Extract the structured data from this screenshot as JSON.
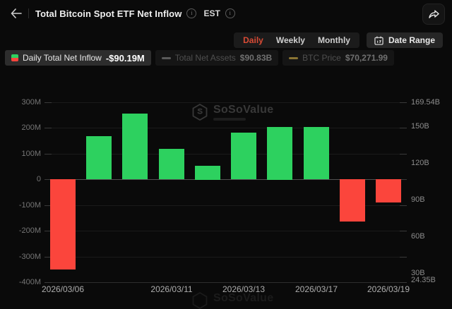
{
  "header": {
    "title": "Total Bitcoin Spot ETF Net Inflow",
    "title_info": "i",
    "timezone": "EST",
    "timezone_info": "i"
  },
  "controls": {
    "tabs": [
      {
        "label": "Daily",
        "active": true
      },
      {
        "label": "Weekly",
        "active": false
      },
      {
        "label": "Monthly",
        "active": false
      }
    ],
    "active_tab_color": "#d94b35",
    "date_range_label": "Date Range"
  },
  "legend": [
    {
      "label": "Daily Total Net Inflow",
      "value": "-$90.19M",
      "active": true,
      "swatch_top": "#2dd15f",
      "swatch_bottom": "#fb453c"
    },
    {
      "label": "Total Net Assets",
      "value": "$90.83B",
      "active": false,
      "swatch_color": "#5a5a5a"
    },
    {
      "label": "BTC Price",
      "value": "$70,271.99",
      "active": false,
      "swatch_color": "#8a7433"
    }
  ],
  "watermark": {
    "text": "SoSoValue"
  },
  "chart_data": {
    "type": "bar",
    "title": "Total Bitcoin Spot ETF Net Inflow",
    "series_name": "Daily Total Net Inflow",
    "values_millions": [
      -352,
      168,
      255,
      118,
      54,
      182,
      205,
      203,
      -165,
      -90.19
    ],
    "x_visible_ticks": [
      {
        "label": "2026/03/06",
        "bar_index": 0
      },
      {
        "label": "2026/03/11",
        "bar_index": 3
      },
      {
        "label": "2026/03/13",
        "bar_index": 5
      },
      {
        "label": "2026/03/17",
        "bar_index": 7
      },
      {
        "label": "2026/03/19",
        "bar_index": 9
      }
    ],
    "bar_colors": {
      "positive": "#2dd15f",
      "negative": "#fb453c"
    },
    "left_axis": {
      "unit": "M",
      "range": [
        -400,
        300
      ],
      "ticks": [
        {
          "label": "300M",
          "value": 300
        },
        {
          "label": "200M",
          "value": 200
        },
        {
          "label": "100M",
          "value": 100
        },
        {
          "label": "0",
          "value": 0
        },
        {
          "label": "-100M",
          "value": -100
        },
        {
          "label": "-200M",
          "value": -200
        },
        {
          "label": "-300M",
          "value": -300
        },
        {
          "label": "-400M",
          "value": -400
        }
      ]
    },
    "right_axis": {
      "unit": "B",
      "min": 24.35,
      "max": 169.54,
      "labels": [
        {
          "label": "169.54B",
          "value": 169.54
        },
        {
          "label": "150B",
          "value": 150
        },
        {
          "label": "120B",
          "value": 120
        },
        {
          "label": "90B",
          "value": 90
        },
        {
          "label": "60B",
          "value": 60
        },
        {
          "label": "30B",
          "value": 30
        },
        {
          "label": "24.35B",
          "value": 24.35
        }
      ]
    },
    "grid": true,
    "legend_position": "top-left"
  }
}
